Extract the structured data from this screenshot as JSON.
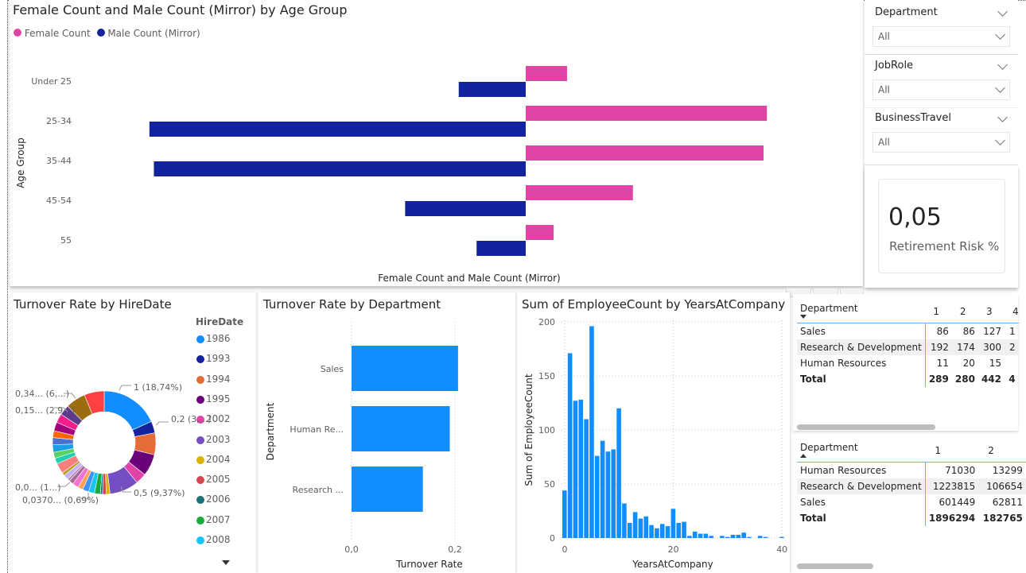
{
  "colors": {
    "female": "#e044a7",
    "male": "#12239e",
    "bar": "#118dff"
  },
  "slicers": [
    {
      "label": "Department",
      "value": "All"
    },
    {
      "label": "JobRole",
      "value": "All"
    },
    {
      "label": "BusinessTravel",
      "value": "All"
    }
  ],
  "kpi": {
    "value": "0,05",
    "label": "Retirement Risk %"
  },
  "chart_data": [
    {
      "type": "bar",
      "orientation": "horizontal-mirror",
      "title": "Female Count and Male Count (Mirror) by Age Group",
      "xlabel": "Female Count and Male Count (Mirror)",
      "ylabel": "Age Group",
      "legend_position": "top-left",
      "categories": [
        "Under 25",
        "25-34",
        "35-44",
        "45-54",
        "55"
      ],
      "series": [
        {
          "name": "Female Count",
          "color": "#e044a7",
          "values": [
            37,
            216,
            213,
            96,
            25
          ]
        },
        {
          "name": "Male Count (Mirror)",
          "color": "#12239e",
          "values": [
            -60,
            -337,
            -333,
            -108,
            -44
          ]
        }
      ]
    },
    {
      "type": "pie",
      "variant": "donut",
      "title": "Turnover Rate by HireDate",
      "legend_title": "HireDate",
      "legend_position": "right",
      "legend_items": [
        "1986",
        "1993",
        "1994",
        "1995",
        "2002",
        "2003",
        "2004",
        "2005",
        "2006",
        "2007",
        "2008"
      ],
      "slice_share_pct": [
        18.74,
        3.75,
        7.0,
        7.0,
        3.5,
        9.37,
        1.2,
        1.2,
        0.69,
        1.9,
        1.9,
        2.0,
        1.6,
        2.0,
        1.4,
        0.8,
        1.6,
        1.0,
        3.3,
        1.9,
        1.9,
        2.4,
        2.3,
        2.2,
        2.8,
        2.9,
        3.3,
        6.4,
        6.4
      ],
      "slice_colors": [
        "#118dff",
        "#12239e",
        "#e66c37",
        "#6b007b",
        "#e044a7",
        "#744ec2",
        "#d9b300",
        "#d64550",
        "#197278",
        "#1aab40",
        "#15c6f4",
        "#4092ff",
        "#ffa058",
        "#f472d0",
        "#a66999",
        "#b887ad",
        "#c5b4f5",
        "#b5a020",
        "#fa8080",
        "#21cfb0",
        "#56d360",
        "#1a9fe0",
        "#4a6fcf",
        "#ff6600",
        "#a0007b",
        "#f21e8c",
        "#5a3b8c",
        "#9c6d0e",
        "#ff4040"
      ],
      "data_labels": [
        "1 (18,74%)",
        "0,2 (3,...)",
        "0,5 (9,37%)",
        "0,0370... (0,69%)",
        "0,0... (1...)",
        "0,15... (2,9...)",
        "0,34... (6,...)"
      ]
    },
    {
      "type": "bar",
      "orientation": "horizontal",
      "title": "Turnover Rate by Department",
      "xlabel": "Turnover Rate",
      "ylabel": "Department",
      "categories": [
        "Sales",
        "Human Re...",
        "Research ..."
      ],
      "values": [
        0.206,
        0.19,
        0.138
      ],
      "xticks": [
        "0,0",
        "0,2"
      ],
      "xlim": [
        0,
        0.2
      ],
      "grid": true
    },
    {
      "type": "bar",
      "title": "Sum of EmployeeCount by YearsAtCompany",
      "xlabel": "YearsAtCompany",
      "ylabel": "Sum of EmployeeCount",
      "x": [
        0,
        1,
        2,
        3,
        4,
        5,
        6,
        7,
        8,
        9,
        10,
        11,
        12,
        13,
        14,
        15,
        16,
        17,
        18,
        19,
        20,
        21,
        22,
        23,
        24,
        25,
        26,
        27,
        28,
        29,
        30,
        31,
        32,
        33,
        34,
        35,
        36,
        37,
        38,
        39,
        40
      ],
      "values": [
        44,
        171,
        127,
        128,
        110,
        196,
        76,
        90,
        80,
        82,
        120,
        32,
        14,
        24,
        18,
        20,
        12,
        9,
        13,
        11,
        27,
        14,
        15,
        2,
        6,
        4,
        4,
        2,
        0,
        2,
        1,
        3,
        3,
        5,
        1,
        0,
        2,
        1,
        0,
        0,
        1
      ],
      "xticks": [
        "0",
        "20",
        "40"
      ],
      "yticks": [
        "0",
        "50",
        "100",
        "150",
        "200"
      ],
      "xlim": [
        0,
        40
      ],
      "ylim": [
        0,
        200
      ],
      "grid": true
    }
  ],
  "matrix1": {
    "header": [
      "Department",
      "1",
      "2",
      "3",
      "4"
    ],
    "rows": [
      [
        "Sales",
        "86",
        "86",
        "127",
        "1"
      ],
      [
        "Research & Development",
        "192",
        "174",
        "300",
        "2"
      ],
      [
        "Human Resources",
        "11",
        "20",
        "15",
        ""
      ]
    ],
    "total": [
      "Total",
      "289",
      "280",
      "442",
      "4"
    ]
  },
  "matrix2": {
    "header": [
      "Department",
      "1",
      "2"
    ],
    "rows": [
      [
        "Human Resources",
        "71030",
        "13299"
      ],
      [
        "Research & Development",
        "1223815",
        "106654"
      ],
      [
        "Sales",
        "601449",
        "62811"
      ]
    ],
    "total": [
      "Total",
      "1896294",
      "182765"
    ]
  }
}
